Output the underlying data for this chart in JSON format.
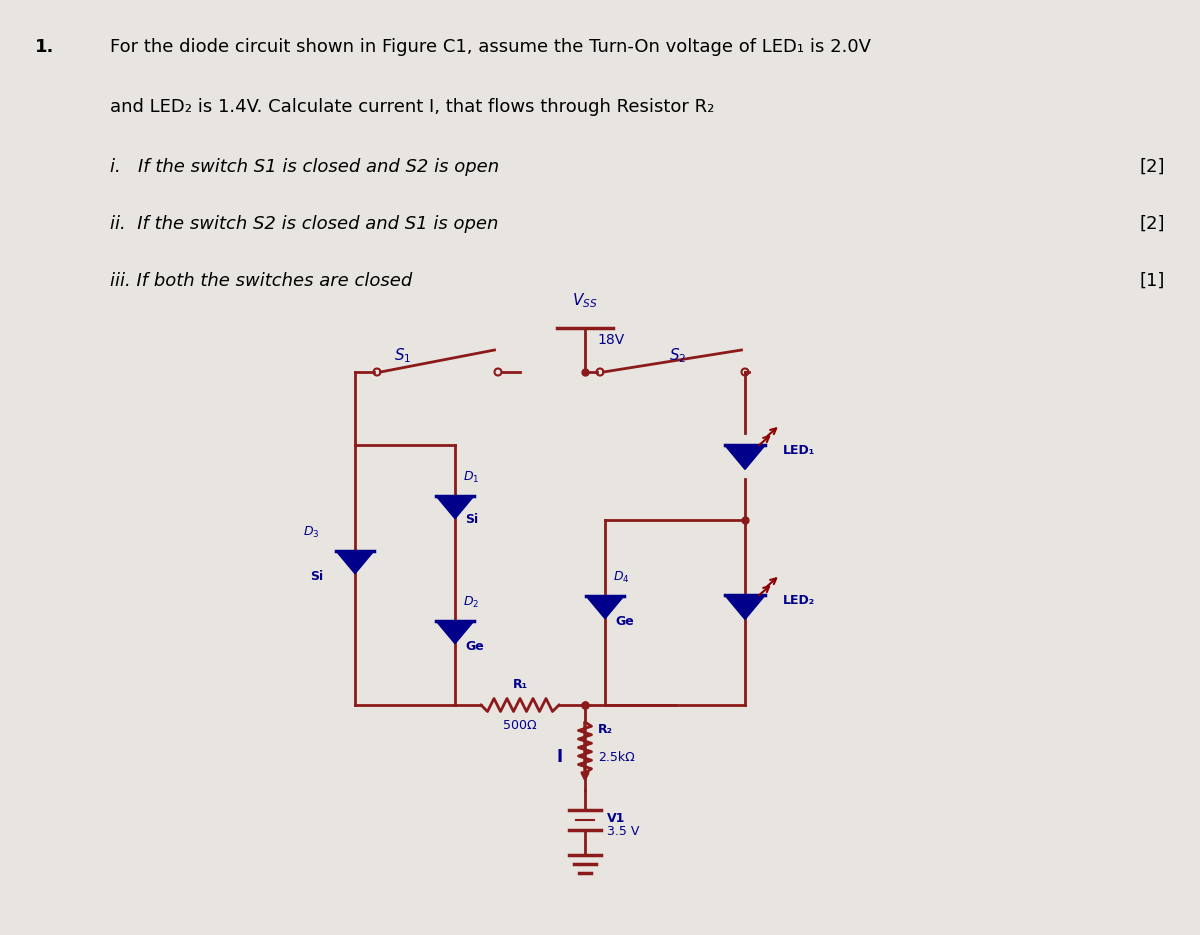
{
  "bg_color": "#e8e4e0",
  "text_color": "#000000",
  "wire_color": "#8B1A1A",
  "diode_color": "#00008B",
  "led_arrow_color": "#8B0000",
  "label_color": "#00008B",
  "vss_label": "V_{SS}",
  "vss_value": "18V",
  "s1_label": "S₁",
  "s2_label": "S₂",
  "d1_label": "D₁",
  "d1_type": "Si",
  "d2_label": "D₂",
  "d2_type": "Ge",
  "d3_label": "D₃",
  "d3_type": "Si",
  "d4_label": "D₄",
  "d4_type": "Ge",
  "led1_label": "LED₁",
  "led2_label": "LED₂",
  "r1_label": "R₁",
  "r1_value": "500Ω",
  "r2_label": "R₂",
  "r2_value": "2.5kΩ",
  "v1_label": "V1",
  "v1_value": "3.5 V",
  "current_label": "I",
  "q_line1": "For the diode circuit shown in Figure C1, assume the Turn-On voltage of LED₁ is 2.0V",
  "q_line2": "and LED₂ is 1.4V. Calculate current I, that flows through Resistor R₂",
  "q_i": "i.   If the switch S1 is closed and S2 is open",
  "q_ii": "ii.  If the switch S2 is closed and S1 is open",
  "q_iii": "iii. If both the switches are closed",
  "m1": "[2]",
  "m2": "[2]",
  "m3": "[1]"
}
